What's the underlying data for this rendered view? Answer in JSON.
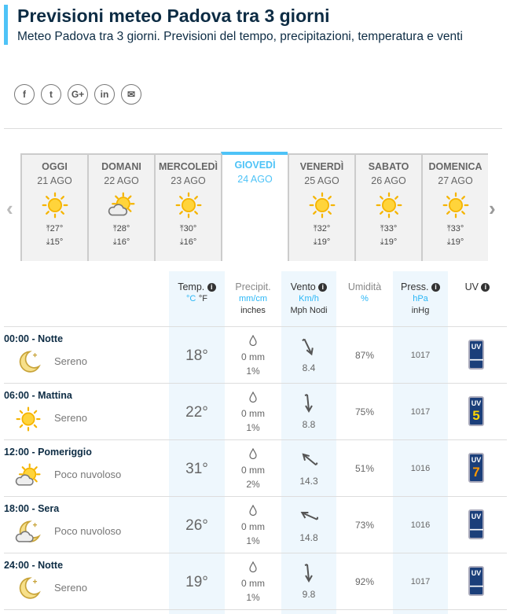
{
  "header": {
    "title": "Previsioni meteo Padova tra 3 giorni",
    "subtitle": "Meteo Padova tra 3 giorni. Previsioni del tempo, precipitazioni, temperatura e venti"
  },
  "social": [
    {
      "icon": "facebook-icon",
      "glyph": "f"
    },
    {
      "icon": "twitter-icon",
      "glyph": "t"
    },
    {
      "icon": "google-plus-icon",
      "glyph": "G+"
    },
    {
      "icon": "linkedin-icon",
      "glyph": "in"
    },
    {
      "icon": "email-icon",
      "glyph": "✉"
    }
  ],
  "days": [
    {
      "name": "OGGI",
      "date": "21 AGO",
      "icon": "sun",
      "max": "27°",
      "min": "15°"
    },
    {
      "name": "DOMANI",
      "date": "22 AGO",
      "icon": "sun-cloud",
      "max": "28°",
      "min": "16°"
    },
    {
      "name": "MERCOLEDÌ",
      "date": "23 AGO",
      "icon": "sun",
      "max": "30°",
      "min": "16°"
    },
    {
      "name": "GIOVEDÌ",
      "date": "24 AGO",
      "selected": true
    },
    {
      "name": "VENERDÌ",
      "date": "25 AGO",
      "icon": "sun",
      "max": "32°",
      "min": "19°"
    },
    {
      "name": "SABATO",
      "date": "26 AGO",
      "icon": "sun",
      "max": "33°",
      "min": "19°"
    },
    {
      "name": "DOMENICA",
      "date": "27 AGO",
      "icon": "sun",
      "max": "33°",
      "min": "19°"
    }
  ],
  "columns": {
    "temp": {
      "label": "Temp.",
      "unit": "°C",
      "unit2": "°F"
    },
    "precip": {
      "label": "Precipit.",
      "unit": "mm/cm",
      "unit2": "inches"
    },
    "wind": {
      "label": "Vento",
      "unit": "Km/h",
      "unit2": "Mph Nodi"
    },
    "humidity": {
      "label": "Umidità",
      "unit": "%"
    },
    "pressure": {
      "label": "Press.",
      "unit": "hPa",
      "unit2": "inHg"
    },
    "uv": {
      "label": "UV"
    }
  },
  "rows": [
    {
      "time": "00:00 - Notte",
      "icon": "moon",
      "desc": "Sereno",
      "temp": "18°",
      "precip": "0 mm",
      "prob": "1%",
      "wind_dir_deg": 160,
      "wind": "8.4",
      "humidity": "87%",
      "pressure": "1017",
      "uv": "—"
    },
    {
      "time": "06:00 - Mattina",
      "icon": "sun",
      "desc": "Sereno",
      "temp": "22°",
      "precip": "0 mm",
      "prob": "1%",
      "wind_dir_deg": 180,
      "wind": "8.8",
      "humidity": "75%",
      "pressure": "1017",
      "uv": "5",
      "uv_color": "#ffd600"
    },
    {
      "time": "12:00 - Pomeriggio",
      "icon": "sun-cloud",
      "desc": "Poco nuvoloso",
      "temp": "31°",
      "precip": "0 mm",
      "prob": "2%",
      "wind_dir_deg": -45,
      "wind": "14.3",
      "humidity": "51%",
      "pressure": "1016",
      "uv": "7",
      "uv_color": "#ff9800"
    },
    {
      "time": "18:00 - Sera",
      "icon": "moon-cloud",
      "desc": "Poco nuvoloso",
      "temp": "26°",
      "precip": "0 mm",
      "prob": "1%",
      "wind_dir_deg": -60,
      "wind": "14.8",
      "humidity": "73%",
      "pressure": "1016",
      "uv": "—"
    },
    {
      "time": "24:00 - Notte",
      "icon": "moon",
      "desc": "Sereno",
      "temp": "19°",
      "precip": "0 mm",
      "prob": "1%",
      "wind_dir_deg": 180,
      "wind": "9.8",
      "humidity": "92%",
      "pressure": "1017",
      "uv": "—"
    }
  ],
  "colors": {
    "accent": "#4ec3f7",
    "title": "#0d2c44",
    "sun": "#ffc83d",
    "uv": "#1b3f7a"
  }
}
